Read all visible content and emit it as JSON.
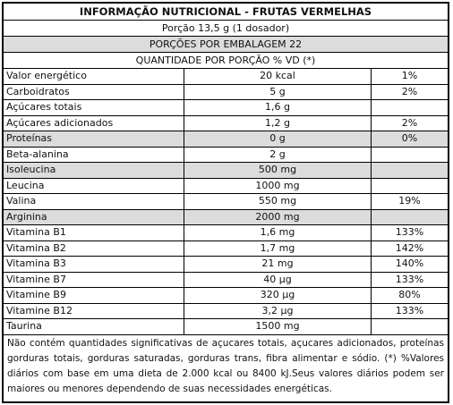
{
  "header": {
    "title": "INFORMAÇÃO NUTRICIONAL - FRUTAS VERMELHAS",
    "serving": "Porção 13,5 g (1 dosador)",
    "portions": "PORÇÕES POR EMBALAGEM 22",
    "quantity_header": "QUANTIDADE POR PORÇÃO % VD (*)"
  },
  "rows": [
    {
      "name": "Valor energético",
      "amount": "20 kcal",
      "vd": "1%",
      "shaded": false
    },
    {
      "name": "Carboidratos",
      "amount": "5 g",
      "vd": "2%",
      "shaded": false
    },
    {
      "name": "Açúcares totais",
      "amount": "1,6 g",
      "vd": "",
      "shaded": false
    },
    {
      "name": "Açúcares adicionados",
      "amount": "1,2 g",
      "vd": "2%",
      "shaded": false
    },
    {
      "name": "Proteínas",
      "amount": "0 g",
      "vd": "0%",
      "shaded": true
    },
    {
      "name": "Beta-alanina",
      "amount": "2 g",
      "vd": "",
      "shaded": false
    },
    {
      "name": "Isoleucina",
      "amount": "500 mg",
      "vd": "",
      "shaded": true
    },
    {
      "name": "Leucina",
      "amount": "1000 mg",
      "vd": "",
      "shaded": false
    },
    {
      "name": "Valina",
      "amount": "550 mg",
      "vd": "19%",
      "shaded": false
    },
    {
      "name": "Arginina",
      "amount": "2000 mg",
      "vd": "",
      "shaded": true
    },
    {
      "name": "Vitamina B1",
      "amount": "1,6 mg",
      "vd": "133%",
      "shaded": false
    },
    {
      "name": "Vitamina B2",
      "amount": "1,7 mg",
      "vd": "142%",
      "shaded": false
    },
    {
      "name": "Vitamina B3",
      "amount": "21 mg",
      "vd": "140%",
      "shaded": false
    },
    {
      "name": "Vitamine B7",
      "amount": "40 µg",
      "vd": "133%",
      "shaded": false
    },
    {
      "name": "Vitamine B9",
      "amount": "320 µg",
      "vd": "80%",
      "shaded": false
    },
    {
      "name": "Vitamine B12",
      "amount": "3,2 µg",
      "vd": "133%",
      "shaded": false
    },
    {
      "name": "Taurina",
      "amount": "1500 mg",
      "vd": "",
      "shaded": false
    }
  ],
  "footnote": "Não contém quantidades significativas de açucares totais, açucares adicionados, proteínas gorduras totais, gorduras saturadas, gorduras trans, fibra alimentar e sódio. (*) %Valores diários com base em uma dieta de 2.000 kcal ou 8400 kJ.Seus valores diários podem ser maiores ou menores dependendo de suas necessidades energéticas.",
  "colors": {
    "border": "#000000",
    "shade": "#dcdcdc",
    "text": "#111111"
  }
}
